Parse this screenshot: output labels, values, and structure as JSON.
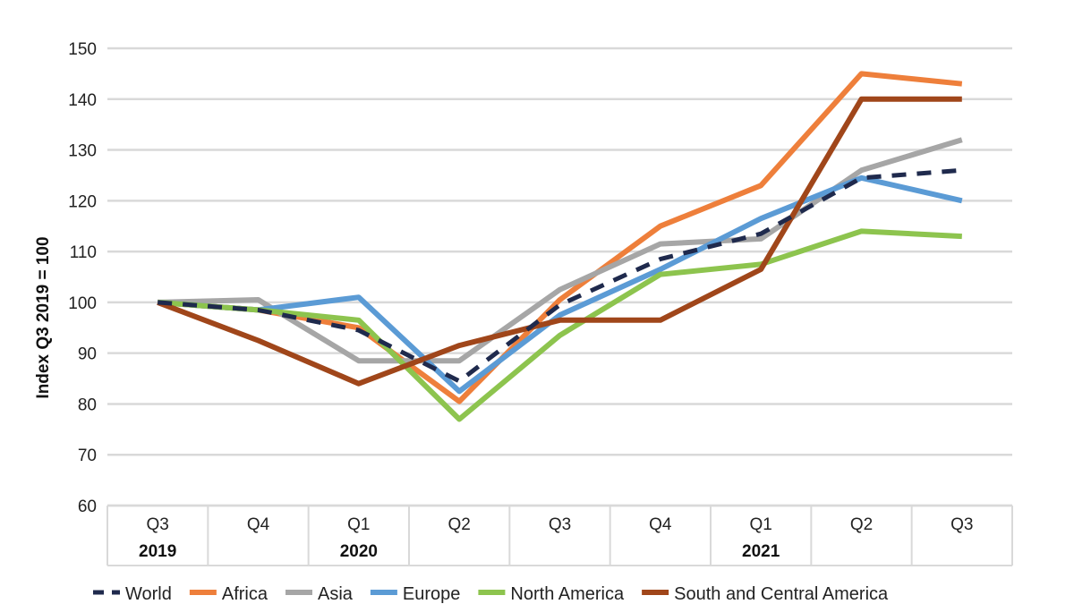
{
  "chart_data": {
    "type": "line",
    "title": "",
    "xlabel": "",
    "ylabel": "Index Q3 2019 = 100",
    "ylim": [
      60,
      150
    ],
    "yticks": [
      60,
      70,
      80,
      90,
      100,
      110,
      120,
      130,
      140,
      150
    ],
    "grid": true,
    "legend_position": "bottom",
    "categories": [
      "Q3",
      "Q4",
      "Q1",
      "Q2",
      "Q3",
      "Q4",
      "Q1",
      "Q2",
      "Q3"
    ],
    "year_labels": [
      {
        "index": 0,
        "label": "2019"
      },
      {
        "index": 2,
        "label": "2020"
      },
      {
        "index": 6,
        "label": "2021"
      }
    ],
    "series": [
      {
        "name": "World",
        "color": "#1f2a4d",
        "dashed": true,
        "values": [
          100,
          98.5,
          94.5,
          84.5,
          99.5,
          108.5,
          113.5,
          124.5,
          126
        ]
      },
      {
        "name": "Africa",
        "color": "#ee7f3b",
        "dashed": false,
        "values": [
          100,
          98.5,
          95,
          80.5,
          100.5,
          115,
          123,
          145,
          143
        ]
      },
      {
        "name": "Asia",
        "color": "#a6a6a6",
        "dashed": false,
        "values": [
          100,
          100.5,
          88.5,
          88.5,
          102.5,
          111.5,
          112.5,
          126,
          132
        ]
      },
      {
        "name": "Europe",
        "color": "#5b9bd5",
        "dashed": false,
        "values": [
          100,
          98.5,
          101,
          82.5,
          97.5,
          106.5,
          116.5,
          124.5,
          120
        ]
      },
      {
        "name": "North America",
        "color": "#8dc44e",
        "dashed": false,
        "values": [
          100,
          98.5,
          96.5,
          77,
          93.5,
          105.5,
          107.5,
          114,
          113
        ]
      },
      {
        "name": "South and Central America",
        "color": "#a0461a",
        "dashed": false,
        "values": [
          100,
          92.5,
          84,
          91.5,
          96.5,
          96.5,
          106.5,
          140,
          140
        ]
      }
    ]
  }
}
